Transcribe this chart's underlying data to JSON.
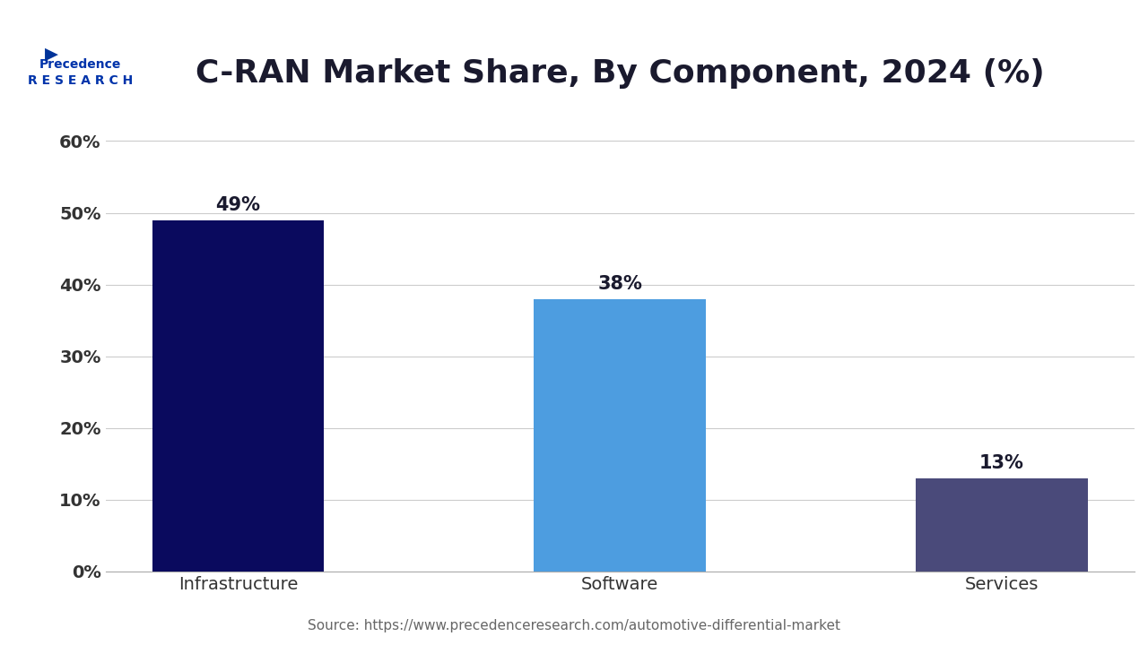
{
  "title": "C-RAN Market Share, By Component, 2024 (%)",
  "categories": [
    "Infrastructure",
    "Software",
    "Services"
  ],
  "values": [
    49,
    38,
    13
  ],
  "bar_colors": [
    "#0a0a5e",
    "#4d9de0",
    "#4a4a7a"
  ],
  "value_labels": [
    "49%",
    "38%",
    "13%"
  ],
  "yticks": [
    0,
    10,
    20,
    30,
    40,
    50,
    60
  ],
  "ytick_labels": [
    "0%",
    "10%",
    "20%",
    "30%",
    "40%",
    "50%",
    "60%"
  ],
  "ylim": [
    0,
    65
  ],
  "source_text": "Source: https://www.precedenceresearch.com/automotive-differential-market",
  "bg_color": "#ffffff",
  "title_color": "#1a1a2e",
  "axis_label_color": "#333333",
  "grid_color": "#cccccc",
  "title_fontsize": 26,
  "label_fontsize": 14,
  "tick_fontsize": 14,
  "value_fontsize": 15,
  "source_fontsize": 11,
  "bar_width": 0.45
}
